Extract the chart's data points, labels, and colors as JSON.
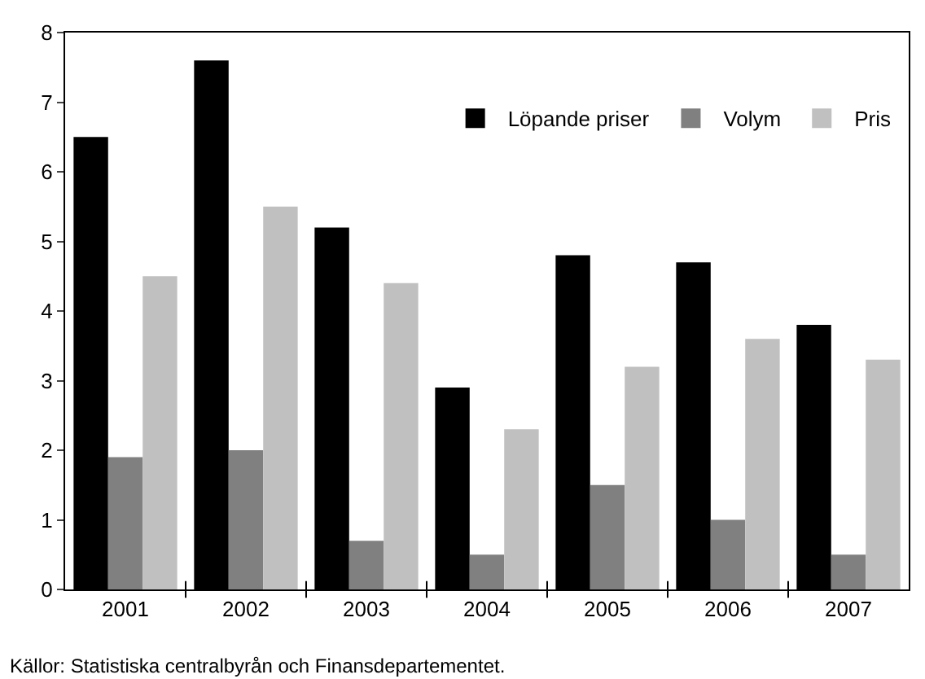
{
  "chart_data": {
    "type": "bar",
    "categories": [
      "2001",
      "2002",
      "2003",
      "2004",
      "2005",
      "2006",
      "2007"
    ],
    "series": [
      {
        "name": "Löpande priser",
        "color": "#000000",
        "values": [
          6.5,
          7.6,
          5.2,
          2.9,
          4.8,
          4.7,
          3.8
        ]
      },
      {
        "name": "Volym",
        "color": "#808080",
        "values": [
          1.9,
          2.0,
          0.7,
          0.5,
          1.5,
          1.0,
          0.5
        ]
      },
      {
        "name": "Pris",
        "color": "#c0c0c0",
        "values": [
          4.5,
          5.5,
          4.4,
          2.3,
          3.2,
          3.6,
          3.3
        ]
      }
    ],
    "ylim": [
      0,
      8
    ],
    "yticks": [
      0,
      1,
      2,
      3,
      4,
      5,
      6,
      7,
      8
    ],
    "legend": "top right",
    "annotations": [
      "Källor: Statistiska centralbyrån och Finansdepartementet."
    ]
  }
}
